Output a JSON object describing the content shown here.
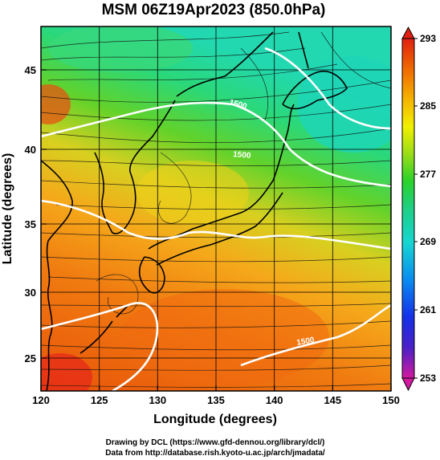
{
  "title": "MSM 06Z19Apr2023 (850.0hPa)",
  "xlabel": "Longitude (degrees)",
  "ylabel": "Latitude  (degrees)",
  "credits": [
    "Drawing by DCL (https://www.gfd-dennou.org/library/dcl/)",
    "Data from http://database.rish.kyoto-u.ac.jp/arch/jmadata/"
  ],
  "map": {
    "lon_range": [
      120,
      150
    ],
    "lat_range": [
      22.4,
      47.6
    ],
    "x_ticks": [
      "120",
      "125",
      "130",
      "135",
      "140",
      "145",
      "150"
    ],
    "y_ticks": [
      "25",
      "30",
      "35",
      "40",
      "45"
    ],
    "field": "temperature (K)",
    "overlay": "wind streamlines",
    "contour_labels": [
      "1500",
      "1500",
      "1500"
    ]
  },
  "colorbar": {
    "ticks": [
      "293",
      "285",
      "277",
      "269",
      "261",
      "253"
    ],
    "range": [
      253,
      293
    ],
    "colors": [
      "#d21aa0",
      "#4b20c8",
      "#1430e8",
      "#0a8cf0",
      "#17d6d0",
      "#1ecf84",
      "#2ad22a",
      "#9add18",
      "#f0f000",
      "#f5b400",
      "#f06a00",
      "#e02010"
    ]
  }
}
